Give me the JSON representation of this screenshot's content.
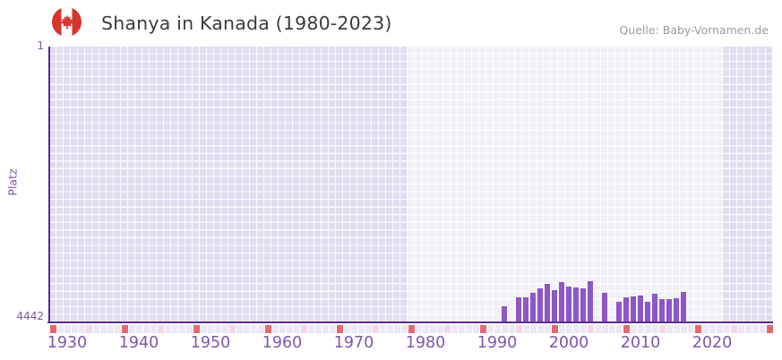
{
  "header": {
    "title": "Shanya in Kanada (1980-2023)",
    "source": "Quelle: Baby-Vornamen.de",
    "flag_icon": "canada-flag-icon"
  },
  "axis": {
    "y_title": "Platz",
    "y_top_tick": "1",
    "y_bottom_tick": "4442"
  },
  "chart_data": {
    "type": "bar",
    "title": "Shanya in Kanada (1980-2023)",
    "ylabel": "Platz",
    "y_axis": {
      "min": 1,
      "max": 4442,
      "inverted": true,
      "ticks": [
        "1",
        "4442"
      ]
    },
    "x_axis": {
      "first_year": 1928,
      "last_year": 2028,
      "tick_labels": [
        1930,
        1940,
        1950,
        1960,
        1970,
        1980,
        1990,
        2000,
        2010,
        2020
      ]
    },
    "highlight_band_years": [
      1978,
      2022
    ],
    "minor_tick_interval": 5,
    "major_tick_interval": 10,
    "series": [
      {
        "name": "Platz",
        "points": [
          {
            "year": 1991,
            "rank": 4180
          },
          {
            "year": 1993,
            "rank": 4035
          },
          {
            "year": 1994,
            "rank": 4035
          },
          {
            "year": 1995,
            "rank": 3970
          },
          {
            "year": 1996,
            "rank": 3900
          },
          {
            "year": 1997,
            "rank": 3815
          },
          {
            "year": 1998,
            "rank": 3930
          },
          {
            "year": 1999,
            "rank": 3790
          },
          {
            "year": 2000,
            "rank": 3860
          },
          {
            "year": 2001,
            "rank": 3880
          },
          {
            "year": 2002,
            "rank": 3895
          },
          {
            "year": 2003,
            "rank": 3780
          },
          {
            "year": 2005,
            "rank": 3970
          },
          {
            "year": 2007,
            "rank": 4115
          },
          {
            "year": 2008,
            "rank": 4040
          },
          {
            "year": 2009,
            "rank": 4030
          },
          {
            "year": 2010,
            "rank": 4010
          },
          {
            "year": 2011,
            "rank": 4115
          },
          {
            "year": 2012,
            "rank": 3985
          },
          {
            "year": 2013,
            "rank": 4065
          },
          {
            "year": 2014,
            "rank": 4065
          },
          {
            "year": 2015,
            "rank": 4050
          },
          {
            "year": 2016,
            "rank": 3955
          }
        ]
      }
    ]
  },
  "colors": {
    "bar": "#8e57c5",
    "axis_line": "#5b2d90",
    "label_purple": "#7d56ad",
    "title_text": "#3c3c3c",
    "source_text": "#9b9b9b",
    "grid_cell": "#e2ddee",
    "grid_gap": "#faf9fd",
    "strip_major": "#e4696f",
    "strip_minor": "#f3d7e3",
    "strip_base": "#ebe7f4",
    "flag_red": "#d8352f"
  }
}
